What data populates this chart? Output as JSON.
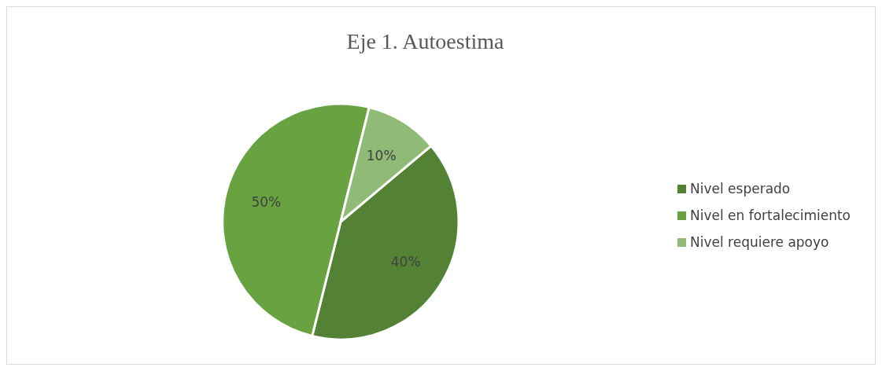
{
  "chart_data": {
    "type": "pie",
    "title": "Eje 1. Autoestima",
    "categories": [
      "Nivel esperado",
      "Nivel en fortalecimiento",
      "Nivel requiere apoyo"
    ],
    "values": [
      40,
      50,
      10
    ],
    "colors": [
      "#548235",
      "#68a241",
      "#8fbb77"
    ],
    "value_labels": [
      "40%",
      "50%",
      "10%"
    ],
    "legend": "right"
  }
}
